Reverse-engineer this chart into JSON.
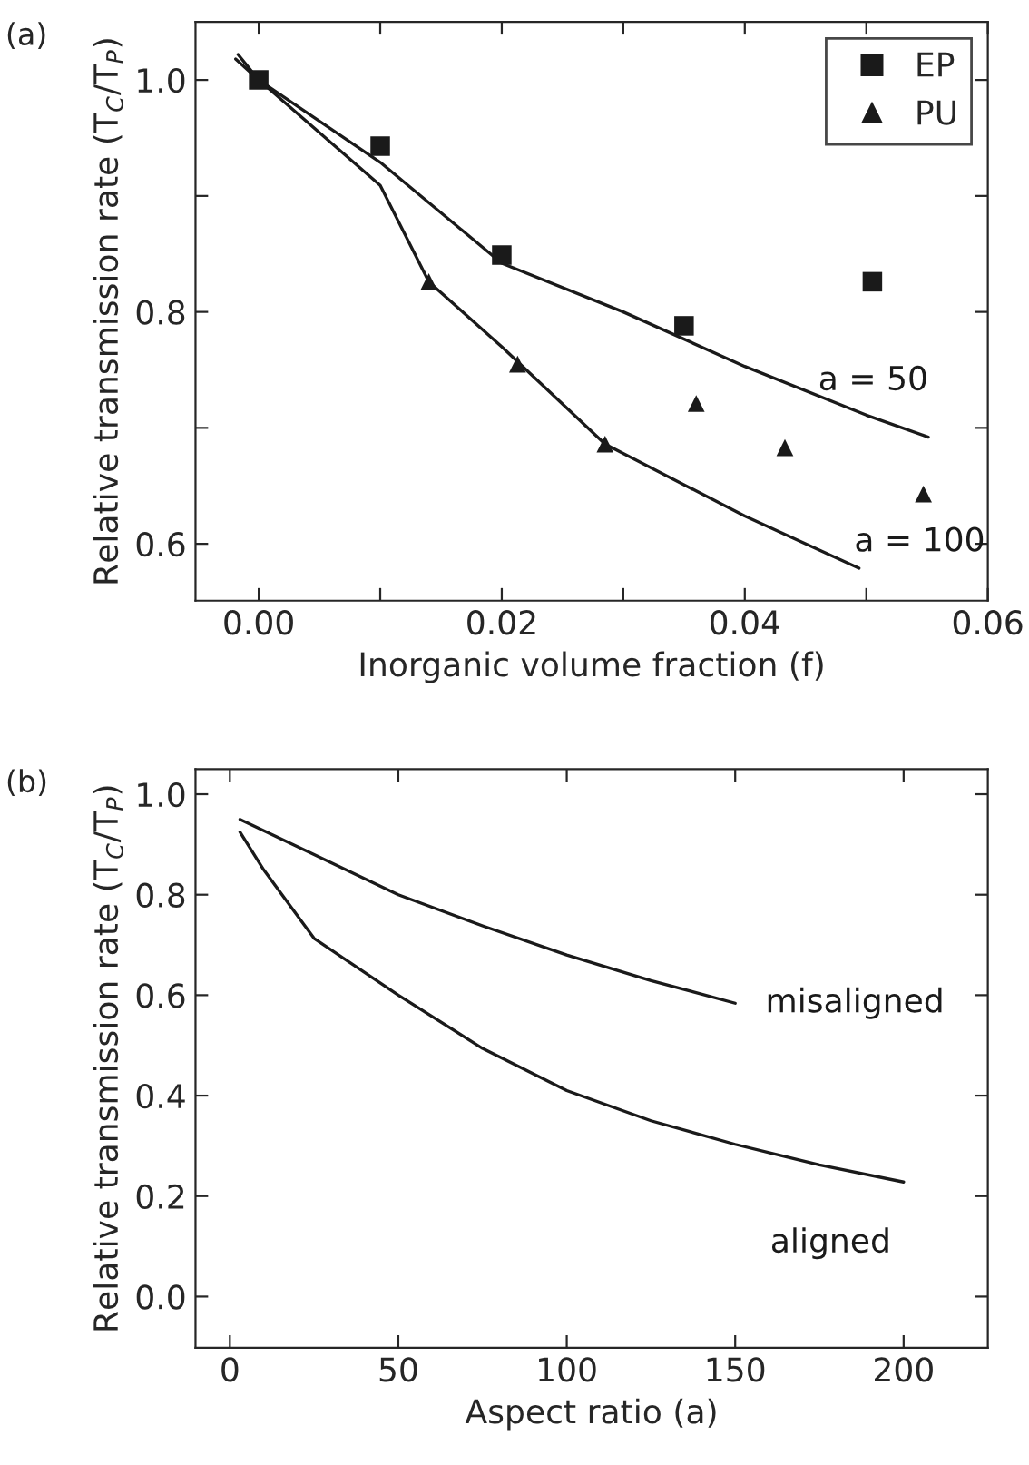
{
  "chart_data": [
    {
      "type": "scatter",
      "xlabel": "Inorganic volume fraction (f)",
      "ylabel": "Relative transmission rate (T$_{C}$/T$_{P}$)",
      "annotations": [
        "(a)"
      ],
      "xlim": [
        -0.0052,
        0.06
      ],
      "ylim": [
        0.551,
        1.05
      ],
      "xticks": [
        {
          "value": 0,
          "label": "0.00"
        },
        {
          "value": 0.01,
          "label": null
        },
        {
          "value": 0.02,
          "label": "0.02"
        },
        {
          "value": 0.03,
          "label": null
        },
        {
          "value": 0.04,
          "label": "0.04"
        },
        {
          "value": 0.05,
          "label": null
        },
        {
          "value": 0.06,
          "label": "0.06"
        }
      ],
      "yticks": [
        {
          "value": 0.6,
          "label": "0.6"
        },
        {
          "value": 0.7,
          "label": null
        },
        {
          "value": 0.8,
          "label": "0.8"
        },
        {
          "value": 0.9,
          "label": null
        },
        {
          "value": 1.0,
          "label": "1.0"
        }
      ],
      "legend": "top right",
      "grid": false,
      "series": [
        {
          "name": "EP",
          "type": "scatter",
          "marker": "square",
          "color": "#1a1a1a",
          "x": [
            0.0,
            0.01,
            0.02,
            0.035,
            0.0505
          ],
          "values": [
            1.0,
            0.943,
            0.849,
            0.788,
            0.826
          ]
        },
        {
          "name": "PU",
          "type": "scatter",
          "marker": "triangle",
          "color": "#1a1a1a",
          "x": [
            0.014,
            0.0213,
            0.0285,
            0.036,
            0.0433,
            0.0547
          ],
          "values": [
            0.826,
            0.755,
            0.686,
            0.721,
            0.683,
            0.643
          ]
        },
        {
          "name": "a = 50",
          "type": "line",
          "color": "#1a1a1a",
          "x": [
            -0.0019,
            0.0,
            0.01,
            0.02,
            0.03,
            0.04,
            0.05,
            0.0551
          ],
          "values": [
            1.018,
            1.0,
            0.929,
            0.842,
            0.8,
            0.753,
            0.711,
            0.692
          ]
        },
        {
          "name": "a = 100",
          "type": "line",
          "color": "#1a1a1a",
          "x": [
            -0.0017,
            0.0,
            0.01,
            0.014,
            0.02,
            0.0285,
            0.04,
            0.0494
          ],
          "values": [
            1.022,
            1.0,
            0.909,
            0.826,
            0.77,
            0.686,
            0.624,
            0.579
          ]
        }
      ]
    },
    {
      "type": "line",
      "xlabel": "Aspect ratio (a)",
      "ylabel": "Relative transmission rate (T$_{C}$/T$_{P}$)",
      "annotations": [
        "(b)"
      ],
      "xlim": [
        -10.2,
        225
      ],
      "ylim": [
        -0.102,
        1.05
      ],
      "xticks": [
        0,
        50,
        100,
        150,
        200
      ],
      "yticks": [
        {
          "value": 0.0,
          "label": "0.0"
        },
        {
          "value": 0.2,
          "label": "0.2"
        },
        {
          "value": 0.4,
          "label": "0.4"
        },
        {
          "value": 0.6,
          "label": "0.6"
        },
        {
          "value": 0.8,
          "label": "0.8"
        },
        {
          "value": 1.0,
          "label": "1.0"
        }
      ],
      "grid": false,
      "series": [
        {
          "name": "misaligned",
          "color": "#1a1a1a",
          "x": [
            3,
            25,
            50,
            75,
            100,
            125,
            150
          ],
          "values": [
            0.95,
            0.88,
            0.8,
            0.738,
            0.68,
            0.629,
            0.584
          ]
        },
        {
          "name": "aligned",
          "color": "#1a1a1a",
          "x": [
            3,
            10,
            25,
            50,
            75,
            100,
            125,
            150,
            175,
            200
          ],
          "values": [
            0.925,
            0.85,
            0.713,
            0.6,
            0.494,
            0.41,
            0.35,
            0.303,
            0.262,
            0.228
          ]
        }
      ]
    }
  ]
}
